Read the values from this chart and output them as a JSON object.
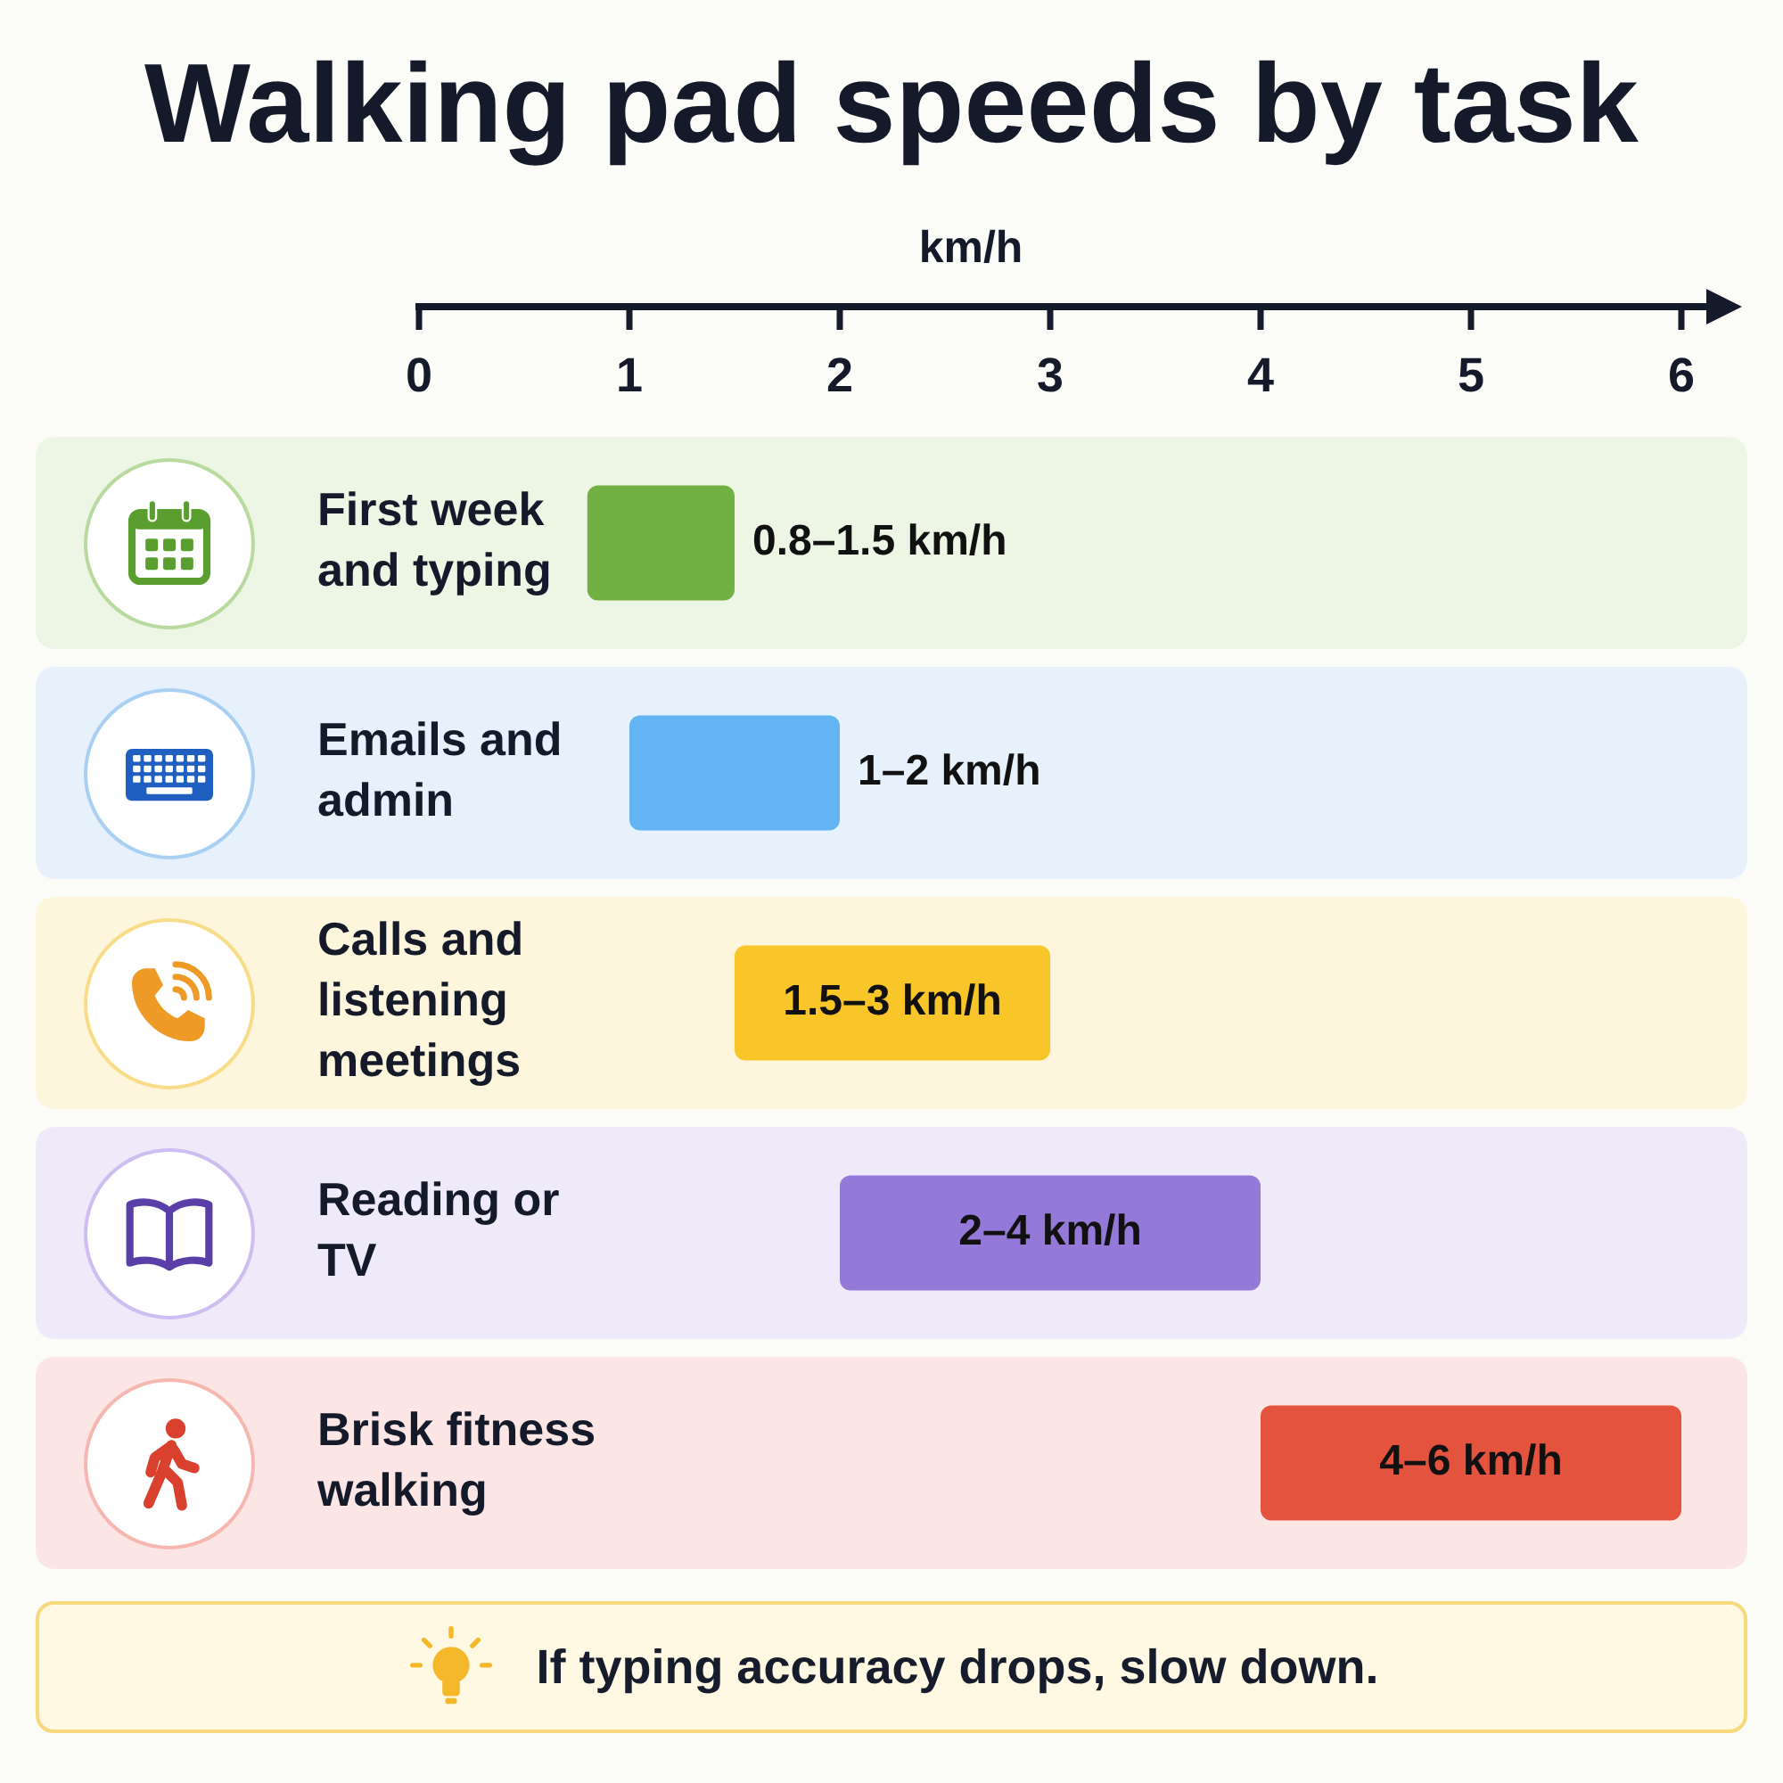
{
  "chart_data": {
    "type": "bar",
    "orientation": "horizontal",
    "title": "Walking pad speeds by task",
    "xlabel": "km/h",
    "categories": [
      "First week and typing",
      "Emails and admin",
      "Calls and listening meetings",
      "Reading or TV",
      "Brisk fitness walking"
    ],
    "base": [
      0.8,
      1,
      1.5,
      2,
      4
    ],
    "values": [
      0.7,
      1,
      1.5,
      2,
      2
    ],
    "colors": [
      "#72b043",
      "#63b4f3",
      "#f9c62a",
      "#9579d8",
      "#e4533e"
    ],
    "value_labels": [
      "0.8–1.5 km/h",
      "1–2 km/h",
      "1.5–3 km/h",
      "2–4 km/h",
      "4–6 km/h"
    ],
    "xlim": [
      0,
      6
    ],
    "xticks": [
      0,
      1,
      2,
      3,
      4,
      5,
      6
    ],
    "bands": [
      {
        "axis": "y",
        "from": "First week and typing",
        "to": "First week and typing",
        "color": "#edf5e5"
      },
      {
        "axis": "y",
        "from": "Emails and admin",
        "to": "Emails and admin",
        "color": "#e7f1fb"
      },
      {
        "axis": "y",
        "from": "Calls and listening meetings",
        "to": "Calls and listening meetings",
        "color": "#fdf5dc"
      },
      {
        "axis": "y",
        "from": "Reading or TV",
        "to": "Reading or TV",
        "color": "#efeafa"
      },
      {
        "axis": "y",
        "from": "Brisk fitness walking",
        "to": "Brisk fitness walking",
        "color": "#fce6e5"
      }
    ],
    "annotations": [
      "If typing accuracy drops, slow down."
    ]
  }
}
